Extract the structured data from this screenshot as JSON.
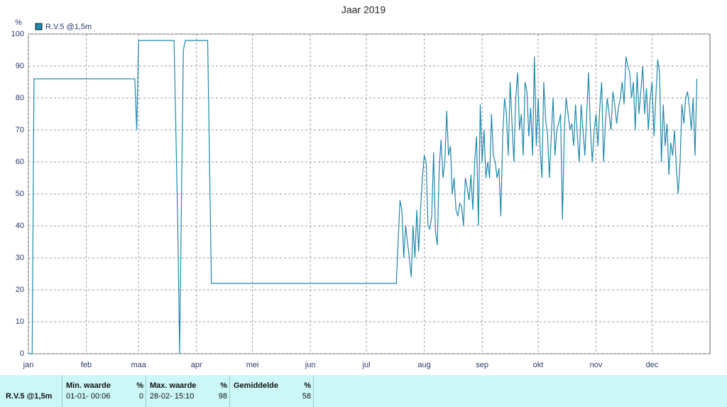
{
  "chart_data": {
    "type": "line",
    "title": "Jaar 2019",
    "ylabel": "%",
    "legend": "top-left",
    "grid": true,
    "xlim": [
      0,
      365
    ],
    "ylim": [
      0,
      100
    ],
    "yticks": [
      0,
      10,
      20,
      30,
      40,
      50,
      60,
      70,
      80,
      90,
      100
    ],
    "xticks": [
      {
        "value": 0,
        "label": "jan"
      },
      {
        "value": 31,
        "label": "feb"
      },
      {
        "value": 59,
        "label": "maa"
      },
      {
        "value": 90,
        "label": "apr"
      },
      {
        "value": 120,
        "label": "mei"
      },
      {
        "value": 151,
        "label": "jun"
      },
      {
        "value": 181,
        "label": "jul"
      },
      {
        "value": 212,
        "label": "aug"
      },
      {
        "value": 243,
        "label": "sep"
      },
      {
        "value": 273,
        "label": "okt"
      },
      {
        "value": 304,
        "label": "nov"
      },
      {
        "value": 334,
        "label": "dec"
      }
    ],
    "x": [
      0,
      1,
      2,
      3,
      57,
      58,
      59,
      78,
      80,
      81,
      82,
      83,
      84,
      96,
      98,
      197,
      199,
      200,
      201,
      202,
      203,
      204,
      205,
      206,
      207,
      208,
      209,
      210,
      211,
      212,
      213,
      214,
      215,
      216,
      217,
      218,
      219,
      220,
      221,
      222,
      223,
      224,
      225,
      226,
      227,
      228,
      229,
      230,
      231,
      232,
      233,
      234,
      235,
      236,
      237,
      238,
      239,
      240,
      241,
      242,
      243,
      244,
      245,
      246,
      247,
      248,
      249,
      250,
      251,
      252,
      253,
      254,
      255,
      256,
      257,
      258,
      259,
      260,
      261,
      262,
      263,
      264,
      265,
      266,
      267,
      268,
      269,
      270,
      271,
      272,
      273,
      274,
      275,
      276,
      277,
      278,
      279,
      280,
      281,
      282,
      283,
      284,
      285,
      286,
      287,
      288,
      289,
      290,
      291,
      292,
      293,
      294,
      295,
      296,
      297,
      298,
      299,
      300,
      301,
      302,
      303,
      304,
      305,
      306,
      307,
      308,
      309,
      310,
      311,
      312,
      313,
      314,
      315,
      316,
      317,
      318,
      319,
      320,
      321,
      322,
      323,
      324,
      325,
      326,
      327,
      328,
      329,
      330,
      331,
      332,
      333,
      334,
      335,
      336,
      337,
      338,
      339,
      340,
      341,
      342,
      343,
      344,
      345,
      346,
      347,
      348,
      349,
      350,
      351,
      352,
      353,
      354,
      355,
      356,
      357,
      358
    ],
    "series": [
      {
        "name": "R.V.5 @1,5m",
        "color": "#1f87ac",
        "values": [
          0,
          0,
          0,
          86,
          86,
          70,
          98,
          98,
          40,
          0,
          50,
          95,
          98,
          98,
          22,
          22,
          48,
          45,
          30,
          40,
          35,
          30,
          24,
          40,
          30,
          45,
          32,
          45,
          55,
          62,
          60,
          40,
          39,
          43,
          63,
          38,
          34,
          58,
          67,
          55,
          60,
          76,
          62,
          65,
          50,
          55,
          45,
          43,
          47,
          46,
          40,
          55,
          52,
          48,
          56,
          45,
          60,
          68,
          40,
          78,
          60,
          70,
          55,
          60,
          55,
          75,
          62,
          60,
          55,
          58,
          43,
          68,
          80,
          75,
          62,
          85,
          72,
          60,
          80,
          88,
          70,
          75,
          62,
          85,
          82,
          68,
          77,
          62,
          93,
          65,
          80,
          65,
          55,
          85,
          73,
          69,
          55,
          68,
          80,
          62,
          70,
          72,
          75,
          42,
          70,
          80,
          75,
          70,
          72,
          65,
          78,
          68,
          60,
          78,
          70,
          62,
          75,
          88,
          70,
          60,
          70,
          75,
          65,
          77,
          85,
          60,
          72,
          80,
          75,
          70,
          82,
          78,
          72,
          77,
          80,
          85,
          78,
          93,
          90,
          88,
          80,
          85,
          70,
          88,
          75,
          82,
          90,
          75,
          83,
          70,
          80,
          85,
          68,
          80,
          92,
          88,
          60,
          78,
          65,
          72,
          56,
          66,
          62,
          70,
          58,
          50,
          60,
          78,
          72,
          80,
          82,
          77,
          70,
          80,
          62,
          86
        ]
      }
    ]
  },
  "summary": {
    "station": "R.V.5 @1,5m",
    "columns": [
      {
        "label": "Min. waarde",
        "unit": "%",
        "time": "01-01- 00:06",
        "value": "0"
      },
      {
        "label": "Max. waarde",
        "unit": "%",
        "time": "28-02- 15:10",
        "value": "98"
      },
      {
        "label": "Gemiddelde",
        "unit": "%",
        "time": "",
        "value": "58"
      }
    ]
  }
}
